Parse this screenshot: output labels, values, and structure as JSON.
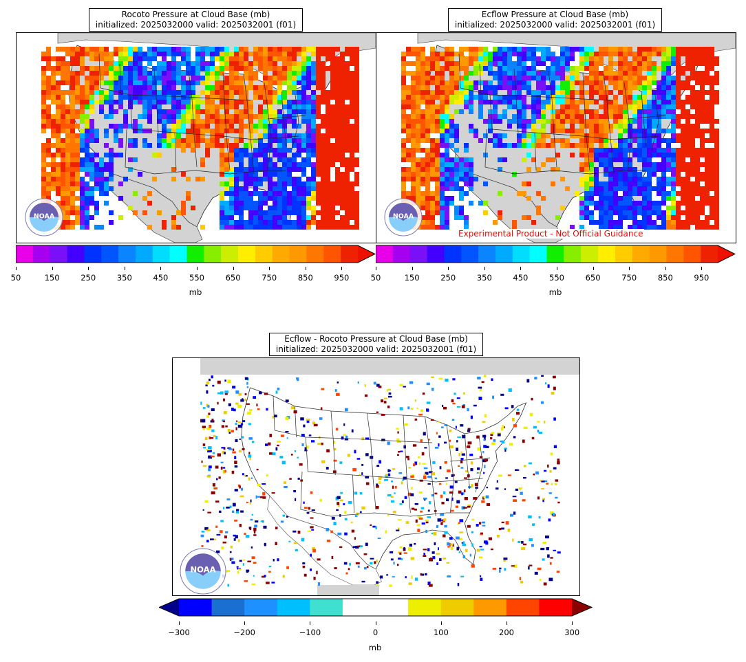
{
  "panels": [
    {
      "title_line1": "Rocoto Pressure at Cloud Base (mb)",
      "title_line2": "initialized: 2025032000 valid: 2025032001 (f01)",
      "logo_label": "NOAA",
      "colorbar_ticks": [
        "50",
        "150",
        "250",
        "350",
        "450",
        "550",
        "650",
        "750",
        "850",
        "950"
      ],
      "colorbar_unit": "mb"
    },
    {
      "title_line1": "Ecflow Pressure at Cloud Base (mb)",
      "title_line2": "initialized: 2025032000 valid: 2025032001 (f01)",
      "logo_label": "NOAA",
      "disclaimer": "Experimental Product - Not Official Guidance",
      "colorbar_ticks": [
        "50",
        "150",
        "250",
        "350",
        "450",
        "550",
        "650",
        "750",
        "850",
        "950"
      ],
      "colorbar_unit": "mb"
    },
    {
      "title_line1": "Ecflow - Rocoto Pressure at Cloud Base (mb)",
      "title_line2": "initialized: 2025032000 valid: 2025032001 (f01)",
      "logo_label": "NOAA",
      "colorbar_ticks": [
        "−300",
        "−200",
        "−100",
        "0",
        "100",
        "200",
        "300"
      ],
      "colorbar_unit": "mb"
    }
  ],
  "colorscales": {
    "pressure": [
      "#e800e8",
      "#a600f0",
      "#7a10f8",
      "#4400ff",
      "#0033ff",
      "#0055ff",
      "#0a84ff",
      "#00aaff",
      "#00ddff",
      "#00ffff",
      "#11ee00",
      "#88ee00",
      "#ccee00",
      "#ffee00",
      "#ffcc00",
      "#ffaa00",
      "#ff9900",
      "#ff7700",
      "#ff5500",
      "#ee2200"
    ],
    "pressure_extend": "#ee1100",
    "difference": [
      "#0000ff",
      "#1a6fd0",
      "#1e90ff",
      "#00bfff",
      "#40e0d0",
      "#ffffff",
      "#ffffff",
      "#eeee00",
      "#eecc00",
      "#ff9900",
      "#ff4500",
      "#ff0000"
    ],
    "difference_low_extend": "#00008b",
    "difference_high_extend": "#8b0000"
  }
}
